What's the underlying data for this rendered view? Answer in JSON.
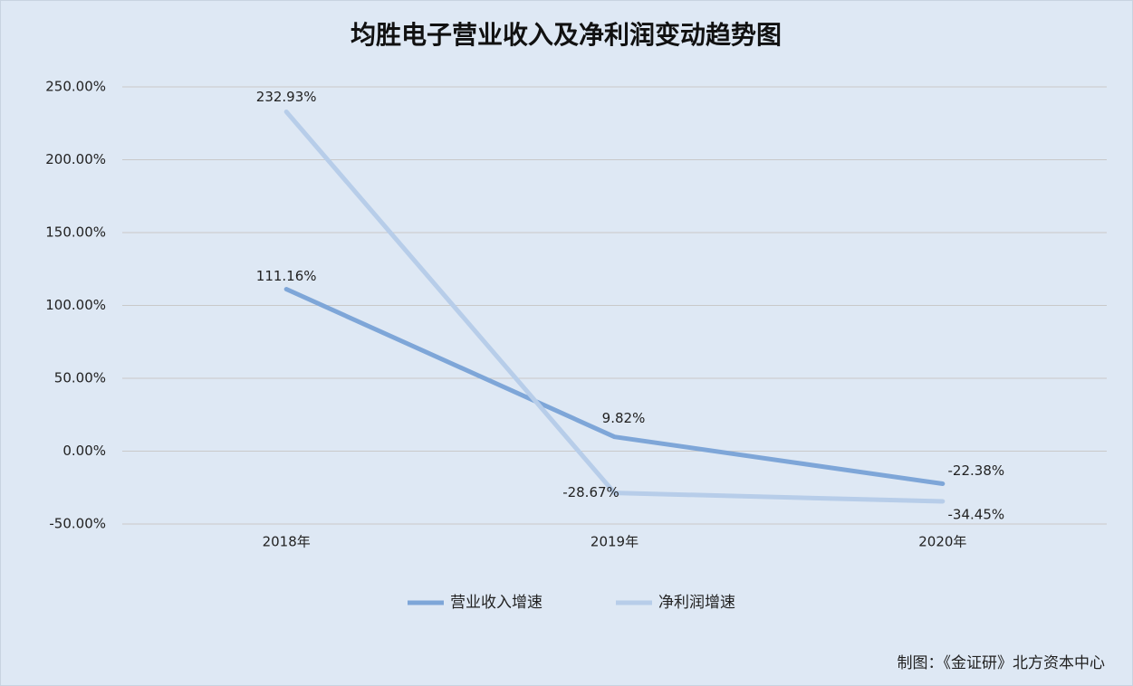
{
  "chart_data": {
    "type": "line",
    "title": "均胜电子营业收入及净利润变动趋势图",
    "categories": [
      "2018年",
      "2019年",
      "2020年"
    ],
    "series": [
      {
        "name": "营业收入增速",
        "color": "#7ea6d8",
        "values": [
          111.16,
          9.82,
          -22.38
        ],
        "value_labels": [
          "111.16%",
          "9.82%",
          "-22.38%"
        ]
      },
      {
        "name": "净利润增速",
        "color": "#b7cde9",
        "values": [
          232.93,
          -28.67,
          -34.45
        ],
        "value_labels": [
          "232.93%",
          "-28.67%",
          "-34.45%"
        ]
      }
    ],
    "ylim": [
      -50,
      250
    ],
    "yticks": [
      {
        "value": -50,
        "label": "-50.00%"
      },
      {
        "value": 0,
        "label": "0.00%"
      },
      {
        "value": 50,
        "label": "50.00%"
      },
      {
        "value": 100,
        "label": "100.00%"
      },
      {
        "value": 150,
        "label": "150.00%"
      },
      {
        "value": 200,
        "label": "200.00%"
      },
      {
        "value": 250,
        "label": "250.00%"
      }
    ],
    "grid": true,
    "legend": "bottom",
    "source": "制图：《金证研》北方资本中心"
  }
}
